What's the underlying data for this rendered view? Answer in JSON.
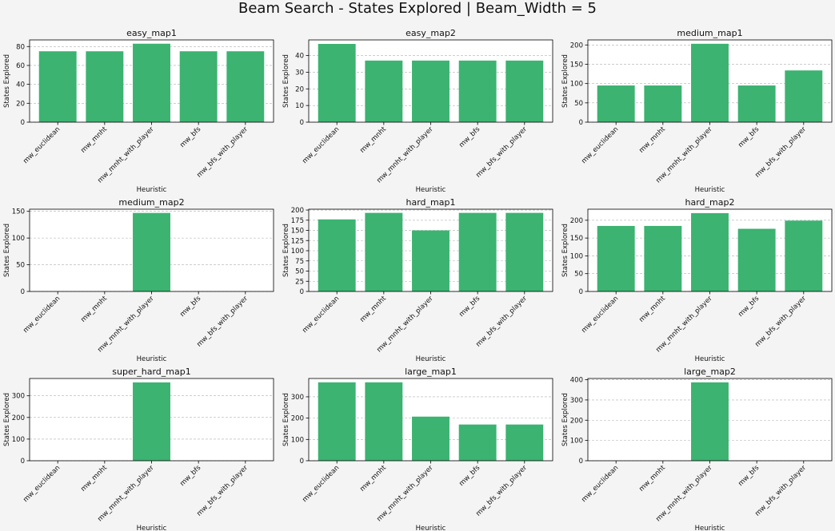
{
  "title": "Beam Search - States Explored | Beam_Width = 5",
  "colors": {
    "bar": "#3cb371",
    "axis": "#000000",
    "grid": "#b0b0b0",
    "background": "#f4f4f4"
  },
  "chart_data": [
    {
      "type": "bar",
      "title": "easy_map1",
      "xlabel": "Heuristic",
      "ylabel": "States Explored",
      "categories": [
        "mw_euclidean",
        "mw_mnht",
        "mw_mnht_with_player",
        "mw_bfs",
        "mw_bfs_with_player"
      ],
      "values": [
        75,
        75,
        83,
        75,
        75
      ],
      "ylim": [
        0,
        87
      ],
      "yticks": [
        0,
        20,
        40,
        60,
        80
      ],
      "grid": "y-dashed"
    },
    {
      "type": "bar",
      "title": "easy_map2",
      "xlabel": "Heuristic",
      "ylabel": "States Explored",
      "categories": [
        "mw_euclidean",
        "mw_mnht",
        "mw_mnht_with_player",
        "mw_bfs",
        "mw_bfs_with_player"
      ],
      "values": [
        47,
        37,
        37,
        37,
        37
      ],
      "ylim": [
        0,
        49.4
      ],
      "yticks": [
        0,
        10,
        20,
        30,
        40
      ],
      "grid": "y-dashed"
    },
    {
      "type": "bar",
      "title": "medium_map1",
      "xlabel": "Heuristic",
      "ylabel": "States Explored",
      "categories": [
        "mw_euclidean",
        "mw_mnht",
        "mw_mnht_with_player",
        "mw_bfs",
        "mw_bfs_with_player"
      ],
      "values": [
        95,
        95,
        203,
        95,
        134
      ],
      "ylim": [
        0,
        213
      ],
      "yticks": [
        0,
        50,
        100,
        150,
        200
      ],
      "grid": "y-dashed"
    },
    {
      "type": "bar",
      "title": "medium_map2",
      "xlabel": "Heuristic",
      "ylabel": "States Explored",
      "categories": [
        "mw_euclidean",
        "mw_mnht",
        "mw_mnht_with_player",
        "mw_bfs",
        "mw_bfs_with_player"
      ],
      "values": [
        0,
        0,
        147,
        0,
        0
      ],
      "ylim": [
        0,
        154
      ],
      "yticks": [
        0,
        50,
        100,
        150
      ],
      "grid": "y-dashed"
    },
    {
      "type": "bar",
      "title": "hard_map1",
      "xlabel": "Heuristic",
      "ylabel": "States Explored",
      "categories": [
        "mw_euclidean",
        "mw_mnht",
        "mw_mnht_with_player",
        "mw_bfs",
        "mw_bfs_with_player"
      ],
      "values": [
        177,
        193,
        150,
        193,
        193
      ],
      "ylim": [
        0,
        202
      ],
      "yticks": [
        0,
        25,
        50,
        75,
        100,
        125,
        150,
        175,
        200
      ],
      "grid": "y-dashed"
    },
    {
      "type": "bar",
      "title": "hard_map2",
      "xlabel": "Heuristic",
      "ylabel": "States Explored",
      "categories": [
        "mw_euclidean",
        "mw_mnht",
        "mw_mnht_with_player",
        "mw_bfs",
        "mw_bfs_with_player"
      ],
      "values": [
        184,
        184,
        220,
        176,
        199
      ],
      "ylim": [
        0,
        231
      ],
      "yticks": [
        0,
        50,
        100,
        150,
        200
      ],
      "grid": "y-dashed"
    },
    {
      "type": "bar",
      "title": "super_hard_map1",
      "xlabel": "Heuristic",
      "ylabel": "States Explored",
      "categories": [
        "mw_euclidean",
        "mw_mnht",
        "mw_mnht_with_player",
        "mw_bfs",
        "mw_bfs_with_player"
      ],
      "values": [
        0,
        0,
        362,
        0,
        0
      ],
      "ylim": [
        0,
        380
      ],
      "yticks": [
        0,
        100,
        200,
        300
      ],
      "grid": "y-dashed"
    },
    {
      "type": "bar",
      "title": "large_map1",
      "xlabel": "Heuristic",
      "ylabel": "States Explored",
      "categories": [
        "mw_euclidean",
        "mw_mnht",
        "mw_mnht_with_player",
        "mw_bfs",
        "mw_bfs_with_player"
      ],
      "values": [
        368,
        368,
        207,
        170,
        170
      ],
      "ylim": [
        0,
        386
      ],
      "yticks": [
        0,
        100,
        200,
        300
      ],
      "grid": "y-dashed"
    },
    {
      "type": "bar",
      "title": "large_map2",
      "xlabel": "Heuristic",
      "ylabel": "States Explored",
      "categories": [
        "mw_euclidean",
        "mw_mnht",
        "mw_mnht_with_player",
        "mw_bfs",
        "mw_bfs_with_player"
      ],
      "values": [
        0,
        0,
        387,
        0,
        0
      ],
      "ylim": [
        0,
        406
      ],
      "yticks": [
        0,
        100,
        200,
        300,
        400
      ],
      "grid": "y-dashed"
    }
  ]
}
